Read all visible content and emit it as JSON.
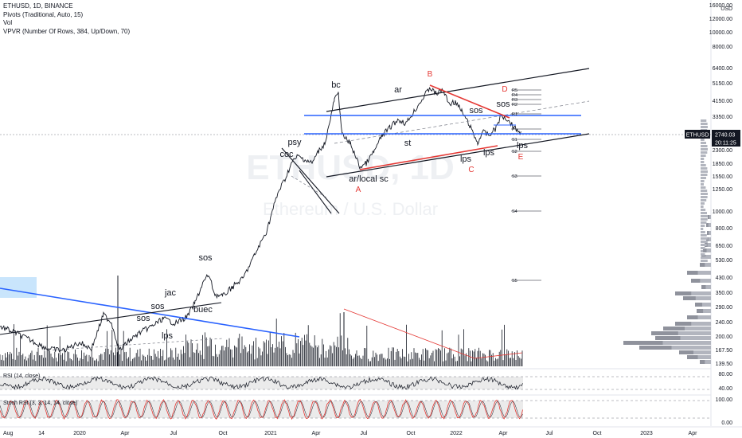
{
  "header": {
    "symbol_line": "ETHUSD, 1D, BINANCE",
    "pivots_line": "Pivots (Traditional, Auto, 15)",
    "vol_line": "Vol",
    "vpvr_line": "VPVR (Number Of Rows, 384, Up/Down, 70)"
  },
  "watermark": {
    "main": "ETHUSD, 1D",
    "sub": "Ethereum / U.S. Dollar"
  },
  "price_axis": {
    "currency": "USD",
    "ticks": [
      "16000.00",
      "12000.00",
      "10000.00",
      "8000.00",
      "6400.00",
      "5150.00",
      "4150.00",
      "3350.00",
      "2740.03",
      "2300.00",
      "1850.00",
      "1550.00",
      "1250.00",
      "1000.00",
      "800.00",
      "650.00",
      "530.00",
      "430.00",
      "350.00",
      "290.00",
      "240.00",
      "200.00",
      "167.50",
      "139.50"
    ],
    "current_price": "2740.03",
    "ticker_tag": "ETHUSD",
    "countdown": "20:11:25"
  },
  "rsi_panel": {
    "label": "RSI (14, close)",
    "ticks": [
      "80.00",
      "40.00"
    ]
  },
  "stoch_panel": {
    "label": "Stoch RSI (3, 3, 14, 14, close)",
    "ticks": [
      "100.00",
      "0.00"
    ]
  },
  "time_axis": {
    "labels": [
      "Aug",
      "14",
      "2020",
      "Apr",
      "Jul",
      "Oct",
      "2021",
      "Apr",
      "Jul",
      "Oct",
      "2022",
      "Apr",
      "Jul",
      "Oct",
      "2023",
      "Apr"
    ]
  },
  "annotations": {
    "black": [
      "sos",
      "jac",
      "sos",
      "buec",
      "sos",
      "lps",
      "psy",
      "coc",
      "bc",
      "ar/local sc",
      "ar",
      "st",
      "sos",
      "sos",
      "lps",
      "lps",
      "lps"
    ],
    "red": [
      "A",
      "B",
      "C",
      "D",
      "E"
    ],
    "pivots": [
      "R5",
      "R4",
      "R3",
      "R2",
      "R1",
      "P",
      "S1",
      "S2",
      "S3",
      "S4",
      "S5"
    ]
  },
  "colors": {
    "price_line": "#131722",
    "trend_blue": "#2962ff",
    "red_line": "#e53935",
    "vol_up": "#26a69a",
    "vpvr_gray": "#9e9e9e",
    "rsi_line": "#131722",
    "stoch_line": "#e53935"
  },
  "chart_data": {
    "type": "line",
    "title": "ETHUSD, 1D, BINANCE",
    "xlabel": "",
    "ylabel": "",
    "log_scale": true,
    "ylim": [
      130,
      18000
    ],
    "x": [
      "2019-08",
      "2019-10",
      "2020-01",
      "2020-03",
      "2020-05",
      "2020-07",
      "2020-09",
      "2020-11",
      "2021-01",
      "2021-02",
      "2021-03",
      "2021-04",
      "2021-05",
      "2021-06",
      "2021-07",
      "2021-08",
      "2021-09",
      "2021-10",
      "2021-11",
      "2021-12",
      "2022-01",
      "2022-02",
      "2022-03",
      "2022-04",
      "2022-05"
    ],
    "series": [
      {
        "name": "ETHUSD",
        "values": [
          210,
          180,
          135,
          110,
          210,
          240,
          380,
          470,
          1050,
          1600,
          1900,
          2500,
          3900,
          2300,
          1900,
          3000,
          3300,
          3800,
          4700,
          3900,
          2700,
          2800,
          2700,
          3400,
          2740
        ]
      }
    ],
    "current": 2740.03,
    "grid": false
  }
}
